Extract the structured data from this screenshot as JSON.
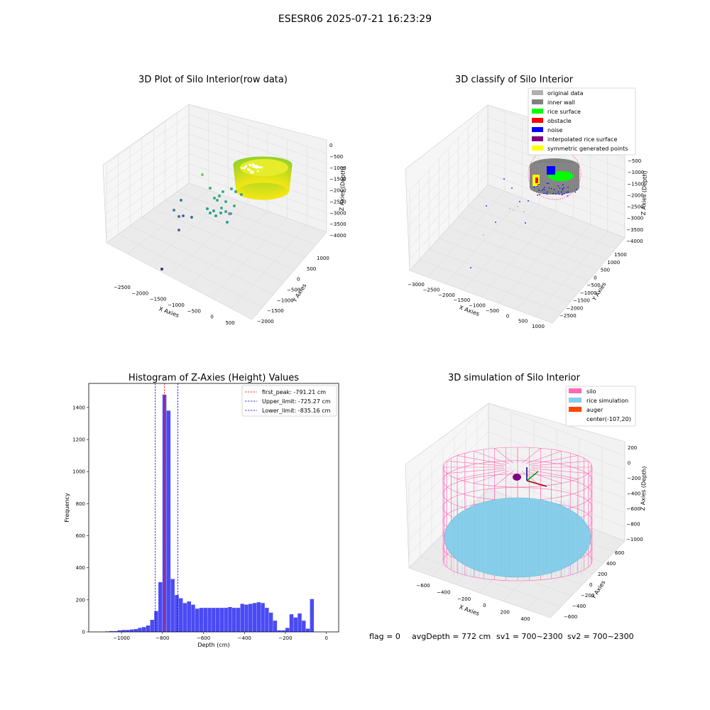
{
  "figure": {
    "suptitle": "ESESR06 2025-07-21 16:23:29",
    "footer": {
      "flag": "flag = 0",
      "avg_depth": "avgDepth = 772 cm",
      "sv1": "sv1 = 700~2300",
      "sv2": "sv2 = 700~2300"
    }
  },
  "colors": {
    "grid": "#d9d9d9",
    "pane": "#f2f2f2",
    "hist_bar": "#4a4af5",
    "peak_line": "#ff0000",
    "limit_line": "#0000cc",
    "original": "#b0b0b0",
    "inner_wall": "#808080",
    "rice_surface": "#00ff00",
    "obstacle": "#ff0000",
    "noise": "#0000ff",
    "interpolated": "#800080",
    "symmetric": "#ffff00",
    "silo": "#ff69b4",
    "rice_sim": "#87ceeb",
    "auger": "#ff4500"
  },
  "chart_data": [
    {
      "type": "scatter",
      "title": "3D Plot of Silo Interior(row data)",
      "xlabel": "X Axies",
      "ylabel": "Y Axies",
      "zlabel": "Z Axies (Depth)",
      "xticks": [
        "−2500",
        "−2000",
        "−1500",
        "−1000",
        "−500",
        "0",
        "500"
      ],
      "yticks": [
        "1000",
        "500",
        "0",
        "−500",
        "−1000",
        "−1500",
        "−2000"
      ],
      "zticks": [
        "0",
        "−500",
        "−1000",
        "−1500",
        "−2000",
        "−2500",
        "−3000",
        "−3500",
        "−4000"
      ]
    },
    {
      "type": "scatter",
      "title": "3D classify of Silo Interior",
      "xlabel": "X Axies",
      "ylabel": "Y Axies",
      "zlabel": "Z Axies (Depth)",
      "xticks": [
        "−3000",
        "−2500",
        "−2000",
        "−1500",
        "−1000",
        "−500",
        "0",
        "500",
        "1000"
      ],
      "yticks": [
        "1500",
        "1000",
        "500",
        "0",
        "−500",
        "−1000",
        "−1500",
        "−2000",
        "−2500"
      ],
      "zticks": [
        "−500",
        "−1000",
        "−1500",
        "−2000",
        "−2500",
        "−3000",
        "−3500",
        "−4000"
      ],
      "legend": [
        "original data",
        "inner wall",
        "rice surface",
        "obstacle",
        "noise",
        "interpolated rice surface",
        "symmetric generated points"
      ]
    },
    {
      "type": "bar",
      "title": "Histogram of Z-Axies (Height) Values",
      "xlabel": "Depth (cm)",
      "ylabel": "Frequency",
      "xlim": [
        -1160,
        60
      ],
      "ylim": [
        0,
        1550
      ],
      "xticks": [
        -1000,
        -800,
        -600,
        -400,
        -200,
        0
      ],
      "yticks": [
        0,
        200,
        400,
        600,
        800,
        1000,
        1200,
        1400
      ],
      "bin_width": 20,
      "bins": [
        [
          -1080,
          3
        ],
        [
          -1060,
          5
        ],
        [
          -1040,
          5
        ],
        [
          -1020,
          10
        ],
        [
          -1000,
          12
        ],
        [
          -980,
          12
        ],
        [
          -960,
          15
        ],
        [
          -940,
          18
        ],
        [
          -920,
          25
        ],
        [
          -900,
          30
        ],
        [
          -880,
          40
        ],
        [
          -860,
          75
        ],
        [
          -840,
          130
        ],
        [
          -820,
          310
        ],
        [
          -800,
          1480
        ],
        [
          -780,
          1380
        ],
        [
          -760,
          330
        ],
        [
          -740,
          230
        ],
        [
          -720,
          210
        ],
        [
          -700,
          180
        ],
        [
          -680,
          190
        ],
        [
          -660,
          170
        ],
        [
          -640,
          145
        ],
        [
          -620,
          150
        ],
        [
          -600,
          150
        ],
        [
          -580,
          150
        ],
        [
          -560,
          150
        ],
        [
          -540,
          150
        ],
        [
          -520,
          150
        ],
        [
          -500,
          150
        ],
        [
          -480,
          155
        ],
        [
          -460,
          150
        ],
        [
          -440,
          150
        ],
        [
          -420,
          175
        ],
        [
          -400,
          170
        ],
        [
          -380,
          175
        ],
        [
          -360,
          180
        ],
        [
          -340,
          185
        ],
        [
          -320,
          180
        ],
        [
          -300,
          150
        ],
        [
          -280,
          120
        ],
        [
          -260,
          70
        ],
        [
          -240,
          10
        ],
        [
          -220,
          10
        ],
        [
          -200,
          25
        ],
        [
          -180,
          110
        ],
        [
          -160,
          90
        ],
        [
          -140,
          115
        ],
        [
          -120,
          70
        ],
        [
          -100,
          20
        ],
        [
          -80,
          205
        ]
      ],
      "lines": [
        {
          "label": "first_peak: -791.21 cm",
          "x": -791.21,
          "color": "#ff0000"
        },
        {
          "label": "Upper_limit: -725.27 cm",
          "x": -725.27,
          "color": "#0000cc"
        },
        {
          "label": "Lower_limit: -835.16 cm",
          "x": -835.16,
          "color": "#0000cc"
        }
      ]
    },
    {
      "type": "scatter",
      "title": "3D simulation of Silo Interior",
      "xlabel": "X Axies",
      "ylabel": "Y Axies",
      "zlabel": "Z Axies (Depth)",
      "xticks": [
        "−600",
        "−400",
        "−200",
        "0",
        "200",
        "400"
      ],
      "yticks": [
        "600",
        "400",
        "200",
        "0",
        "−200",
        "−400",
        "−600"
      ],
      "zticks": [
        "200",
        "0",
        "−200",
        "−400",
        "−600",
        "−800",
        "−1000"
      ],
      "legend": [
        "silo",
        "rice simulation",
        "auger",
        "center(-107,20)"
      ]
    }
  ]
}
